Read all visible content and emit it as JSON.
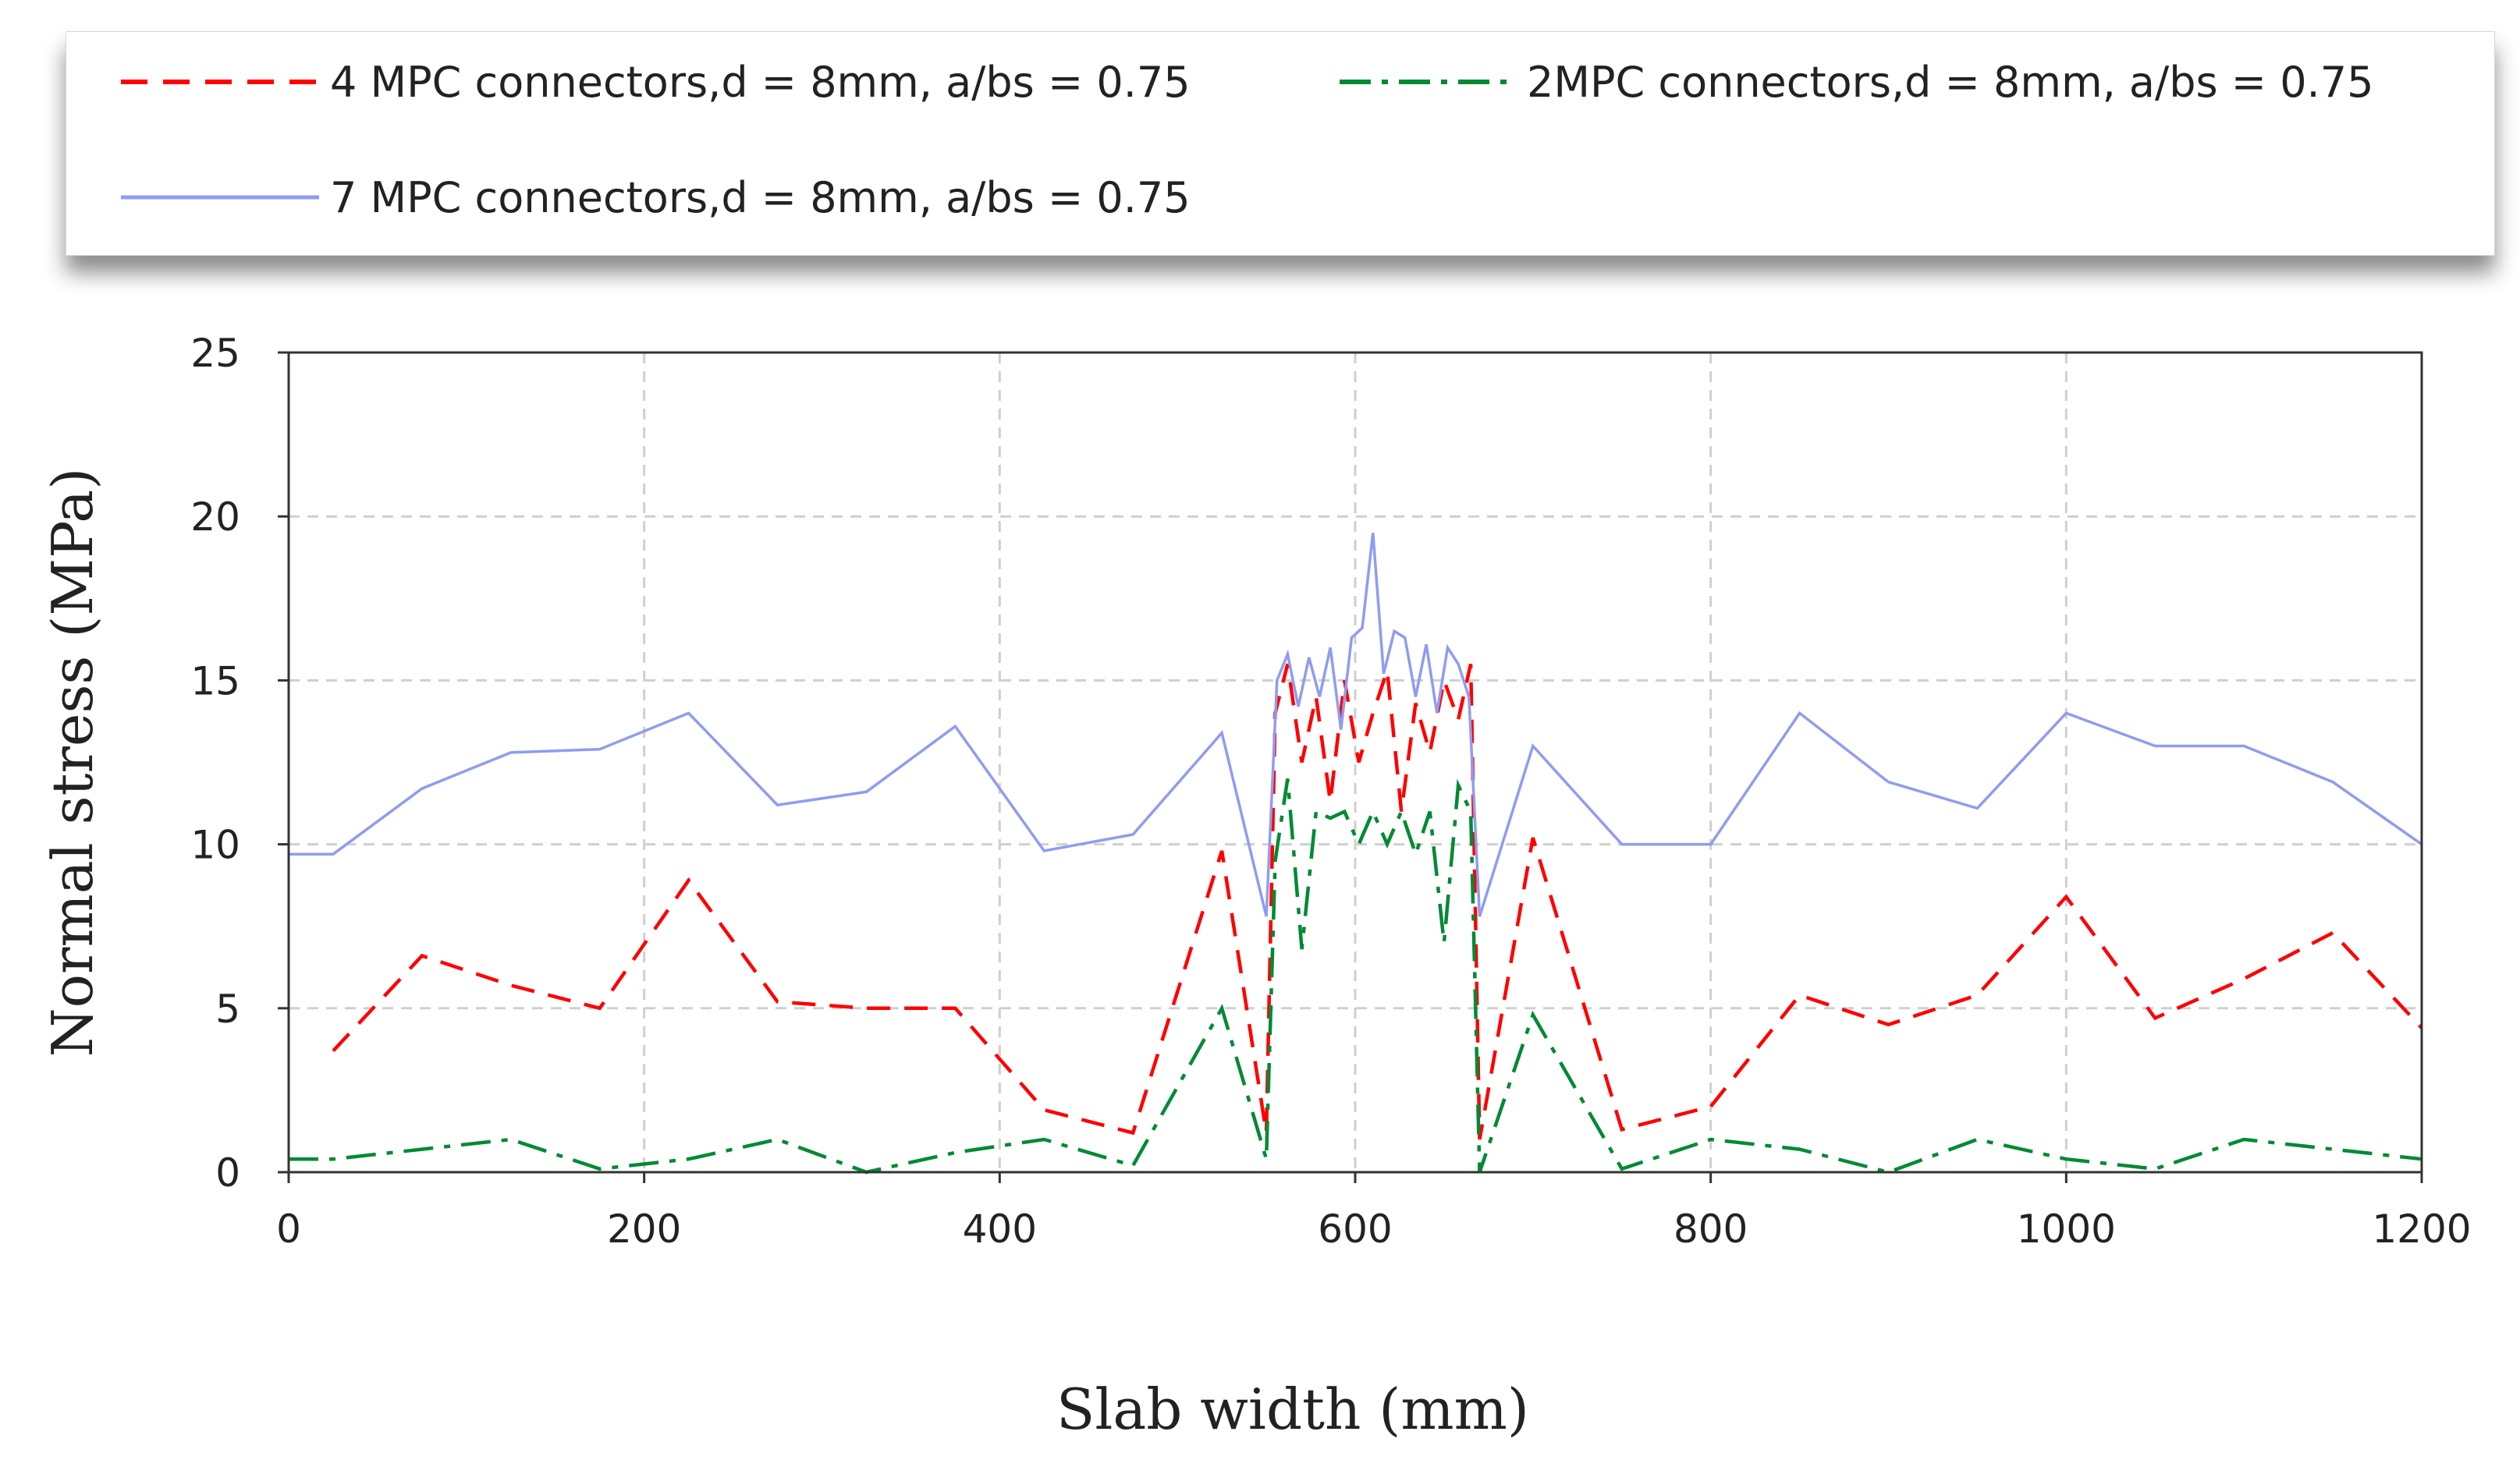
{
  "chart_data": {
    "type": "line",
    "xlabel": "Slab width (mm)",
    "ylabel": "Normal stress (MPa)",
    "xlim": [
      0,
      1200
    ],
    "ylim": [
      0,
      25
    ],
    "x_ticks": [
      0,
      200,
      400,
      600,
      800,
      1000,
      1200
    ],
    "y_ticks": [
      0,
      5,
      10,
      15,
      20,
      25
    ],
    "grid": true,
    "legend_position": "top",
    "series": [
      {
        "name": "4 MPC connectors,d = 8mm, a/bs = 0.75",
        "color": "#ff0000",
        "style": "dashed",
        "x": [
          25,
          75,
          125,
          175,
          225,
          275,
          325,
          375,
          425,
          475,
          525,
          550,
          555,
          562,
          570,
          578,
          586,
          594,
          602,
          610,
          618,
          626,
          634,
          642,
          650,
          658,
          665,
          670,
          700,
          750,
          800,
          850,
          900,
          950,
          1000,
          1050,
          1100,
          1150,
          1200
        ],
        "y": [
          3.7,
          6.6,
          5.7,
          5.0,
          8.9,
          5.2,
          5.0,
          5.0,
          1.9,
          1.2,
          9.8,
          1.2,
          14.0,
          15.5,
          12.5,
          14.5,
          11.3,
          15.0,
          12.5,
          14.0,
          15.3,
          11.0,
          14.3,
          12.8,
          15.0,
          13.8,
          15.5,
          1.0,
          10.2,
          1.3,
          2.0,
          5.4,
          4.5,
          5.4,
          8.4,
          4.7,
          5.9,
          7.3,
          4.4
        ]
      },
      {
        "name": "2MPC connectors,d = 8mm, a/bs = 0.75",
        "color": "#008a34",
        "style": "dash-dot",
        "x": [
          0,
          25,
          75,
          125,
          175,
          225,
          275,
          325,
          375,
          425,
          475,
          525,
          550,
          555,
          562,
          570,
          578,
          586,
          594,
          602,
          610,
          618,
          626,
          634,
          642,
          650,
          658,
          665,
          670,
          700,
          750,
          800,
          850,
          900,
          950,
          1000,
          1050,
          1100,
          1150,
          1200
        ],
        "y": [
          0.4,
          0.4,
          0.7,
          1.0,
          0.1,
          0.4,
          1.0,
          0.0,
          0.6,
          1.0,
          0.2,
          5.0,
          0.4,
          9.5,
          12.0,
          6.8,
          11.0,
          10.8,
          11.0,
          10.0,
          11.0,
          10.0,
          11.0,
          9.7,
          11.0,
          7.0,
          11.8,
          11.0,
          0.0,
          4.8,
          0.1,
          1.0,
          0.7,
          0.0,
          1.0,
          0.4,
          0.1,
          1.0,
          0.7,
          0.4
        ]
      },
      {
        "name": "7 MPC connectors,d = 8mm, a/bs = 0.75",
        "color": "#8f9cf0",
        "style": "solid",
        "x": [
          0,
          25,
          75,
          125,
          175,
          225,
          275,
          325,
          375,
          425,
          475,
          525,
          550,
          556,
          562,
          568,
          574,
          580,
          586,
          592,
          598,
          604,
          610,
          616,
          622,
          628,
          634,
          640,
          646,
          652,
          658,
          664,
          670,
          700,
          750,
          800,
          850,
          900,
          950,
          1000,
          1050,
          1100,
          1150,
          1200
        ],
        "y": [
          9.7,
          9.7,
          11.7,
          12.8,
          12.9,
          14.0,
          11.2,
          11.6,
          13.6,
          9.8,
          10.3,
          13.4,
          7.8,
          15.0,
          15.8,
          14.2,
          15.7,
          14.5,
          16.0,
          13.5,
          16.3,
          16.6,
          19.5,
          15.2,
          16.5,
          16.3,
          14.5,
          16.1,
          14.0,
          16.0,
          15.5,
          14.5,
          7.8,
          13.0,
          10.0,
          10.0,
          14.0,
          11.9,
          11.1,
          14.0,
          13.0,
          13.0,
          11.9,
          10.0
        ]
      }
    ]
  }
}
